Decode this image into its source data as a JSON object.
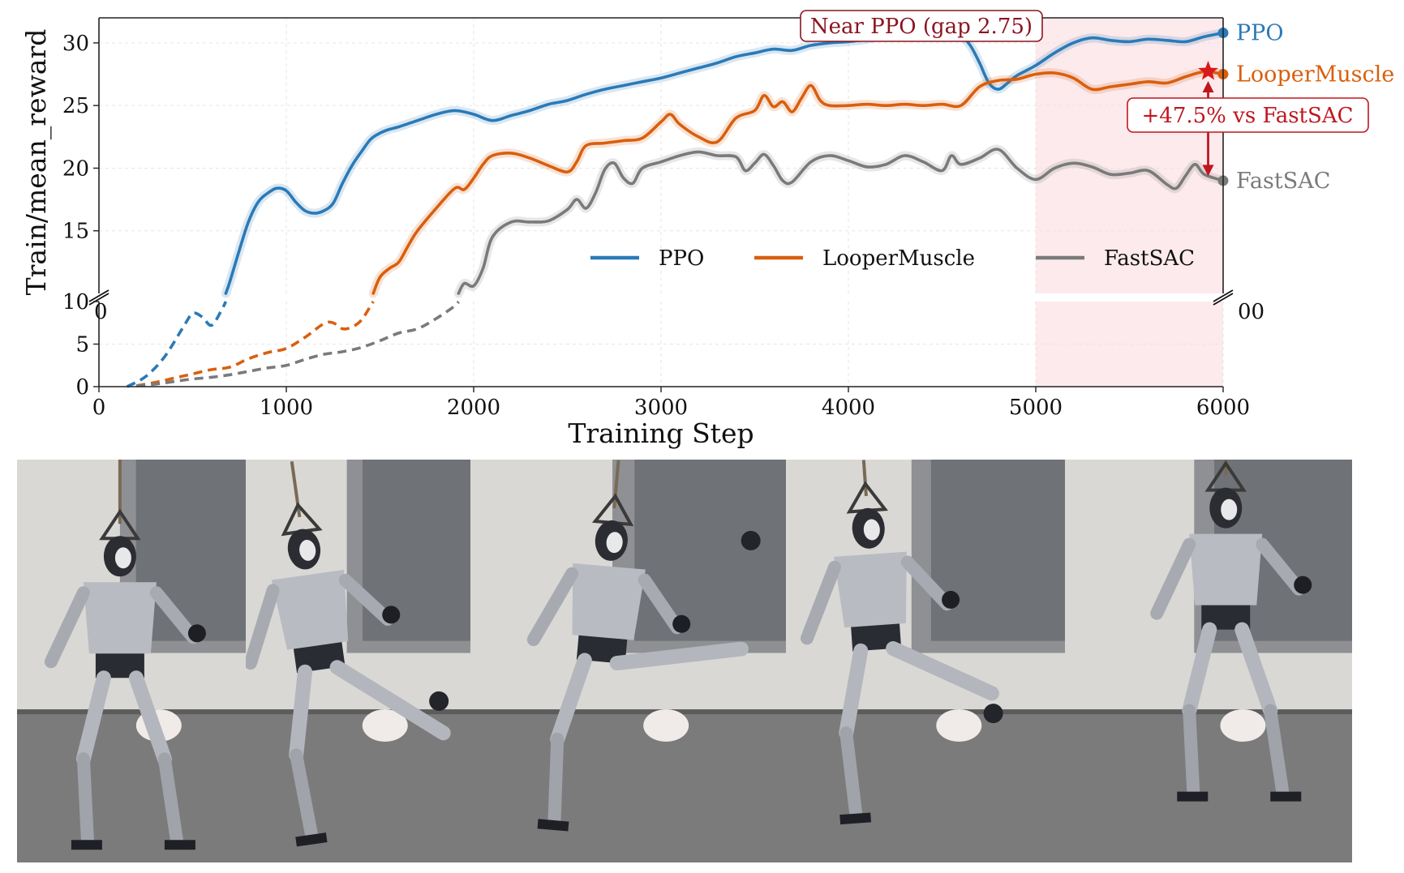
{
  "chart_data": {
    "type": "line",
    "xlabel": "Training Step",
    "ylabel": "Train/mean_reward",
    "xlim": [
      0,
      6000
    ],
    "ylim_lower": [
      0,
      10
    ],
    "ylim_upper": [
      10,
      32
    ],
    "broken_y_axis": true,
    "x_ticks": [
      "0",
      "1000",
      "2000",
      "3000",
      "4000",
      "5000",
      "6000"
    ],
    "y_ticks_upper": [
      "15",
      "20",
      "25",
      "30"
    ],
    "y_ticks_lower": [
      "0",
      "5",
      "10"
    ],
    "grid": true,
    "legend_position": "lower-right of upper panel",
    "highlight_region": {
      "x_start": 5000,
      "x_end": 6000,
      "color": "#f9d9dc"
    },
    "series": [
      {
        "name": "PPO",
        "color": "#2a7ab8",
        "x": [
          150,
          250,
          350,
          450,
          500,
          550,
          600,
          650,
          700,
          750,
          800,
          850,
          900,
          950,
          1000,
          1050,
          1100,
          1150,
          1200,
          1250,
          1300,
          1350,
          1400,
          1450,
          1500,
          1550,
          1600,
          1700,
          1800,
          1900,
          2000,
          2100,
          2200,
          2300,
          2400,
          2500,
          2600,
          2700,
          2800,
          2900,
          3000,
          3100,
          3200,
          3300,
          3400,
          3500,
          3600,
          3700,
          3800,
          3900,
          4000,
          4100,
          4200,
          4300,
          4400,
          4500,
          4600,
          4650,
          4700,
          4750,
          4800,
          4850,
          4900,
          5000,
          5100,
          5200,
          5300,
          5400,
          5500,
          5600,
          5700,
          5800,
          5900,
          6000
        ],
        "y": [
          0,
          1.2,
          3.5,
          7,
          8.6,
          8.2,
          7.2,
          8.8,
          11,
          13.5,
          15.8,
          17.3,
          18,
          18.4,
          18.2,
          17.3,
          16.6,
          16.4,
          16.6,
          17.2,
          18.8,
          20.2,
          21.3,
          22.3,
          22.8,
          23.1,
          23.3,
          23.8,
          24.3,
          24.6,
          24.3,
          23.8,
          24.2,
          24.6,
          25.1,
          25.4,
          25.9,
          26.3,
          26.6,
          26.9,
          27.2,
          27.6,
          28,
          28.4,
          28.9,
          29.2,
          29.5,
          29.4,
          29.8,
          30,
          30.1,
          30.3,
          30.6,
          30.8,
          31,
          30.9,
          30.5,
          29.8,
          28.4,
          26.8,
          26.3,
          26.8,
          27.4,
          28.2,
          29.2,
          30,
          30.4,
          30.2,
          30.1,
          30.3,
          30.2,
          30.1,
          30.5,
          30.8
        ],
        "end_label": "PPO"
      },
      {
        "name": "LooperMuscle",
        "color": "#d95f0e",
        "x": [
          200,
          300,
          400,
          500,
          600,
          700,
          800,
          900,
          1000,
          1100,
          1200,
          1250,
          1300,
          1350,
          1400,
          1450,
          1500,
          1550,
          1600,
          1650,
          1700,
          1800,
          1900,
          1950,
          2000,
          2050,
          2100,
          2200,
          2300,
          2400,
          2500,
          2550,
          2600,
          2700,
          2800,
          2900,
          3000,
          3050,
          3100,
          3200,
          3300,
          3400,
          3500,
          3550,
          3600,
          3650,
          3700,
          3750,
          3800,
          3850,
          3900,
          4000,
          4100,
          4200,
          4300,
          4400,
          4500,
          4600,
          4700,
          4800,
          4900,
          5000,
          5100,
          5200,
          5300,
          5400,
          5500,
          5600,
          5700,
          5800,
          5900,
          6000
        ],
        "y": [
          0.1,
          0.5,
          1,
          1.5,
          2,
          2.3,
          3.3,
          4,
          4.5,
          5.8,
          7.4,
          7.5,
          6.8,
          7,
          7.8,
          9.5,
          11.3,
          12,
          12.5,
          13.8,
          15,
          16.8,
          18.4,
          18.3,
          19.2,
          20.3,
          21,
          21.2,
          20.8,
          20.2,
          19.7,
          20.5,
          21.8,
          22,
          22.2,
          22.4,
          23.7,
          24.3,
          23.5,
          22.5,
          22.1,
          24,
          24.6,
          25.8,
          24.9,
          25.3,
          24.5,
          25.6,
          26.6,
          25.4,
          25,
          25,
          25.1,
          25,
          25.1,
          25,
          25.1,
          25,
          26.5,
          27,
          27.1,
          27.5,
          27.6,
          27.2,
          26.3,
          26.5,
          26.7,
          26.9,
          26.8,
          27.3,
          27.7,
          27.5
        ],
        "end_label": "LooperMuscle"
      },
      {
        "name": "FastSAC",
        "color": "#7a7a7a",
        "x": [
          200,
          300,
          400,
          500,
          600,
          700,
          800,
          900,
          1000,
          1100,
          1200,
          1300,
          1400,
          1500,
          1600,
          1700,
          1800,
          1900,
          1950,
          2000,
          2050,
          2100,
          2200,
          2300,
          2400,
          2500,
          2550,
          2600,
          2650,
          2700,
          2750,
          2800,
          2850,
          2900,
          3000,
          3100,
          3200,
          3300,
          3400,
          3450,
          3500,
          3550,
          3600,
          3650,
          3700,
          3800,
          3900,
          4000,
          4100,
          4200,
          4300,
          4400,
          4500,
          4550,
          4600,
          4700,
          4800,
          4900,
          5000,
          5100,
          5200,
          5300,
          5400,
          5500,
          5600,
          5700,
          5750,
          5800,
          5850,
          5900,
          6000
        ],
        "y": [
          0.1,
          0.3,
          0.6,
          0.9,
          1.1,
          1.4,
          1.8,
          2.2,
          2.5,
          3.2,
          3.8,
          4.1,
          4.6,
          5.4,
          6.3,
          6.8,
          8,
          9.5,
          10.8,
          10.6,
          12,
          14.5,
          15.7,
          15.7,
          15.8,
          16.7,
          17.5,
          16.8,
          18,
          19.9,
          20.4,
          19.2,
          18.8,
          20,
          20.5,
          21,
          21.3,
          21,
          20.9,
          19.8,
          20.4,
          21.1,
          20.2,
          19,
          18.9,
          20.5,
          21,
          20.6,
          20.1,
          20.3,
          21,
          20.5,
          19.8,
          21,
          20.3,
          20.8,
          21.5,
          20,
          19.1,
          20,
          20.4,
          20.1,
          19.5,
          19.6,
          19.8,
          18.7,
          18.4,
          19.4,
          20.3,
          19.5,
          19
        ],
        "end_label": "FastSAC"
      }
    ],
    "annotations": [
      {
        "text": "Near PPO (gap 2.75)",
        "color": "#8b1520"
      },
      {
        "text": "+47.5% vs FastSAC",
        "color": "#c0161f"
      }
    ],
    "break_tick_fragments": [
      "0",
      "00"
    ]
  },
  "photo_strip": {
    "frames": [
      {
        "pose": "guard-stance"
      },
      {
        "pose": "kick-windup"
      },
      {
        "pose": "high-kick"
      },
      {
        "pose": "kick-retract"
      },
      {
        "pose": "wide-stance"
      }
    ]
  }
}
